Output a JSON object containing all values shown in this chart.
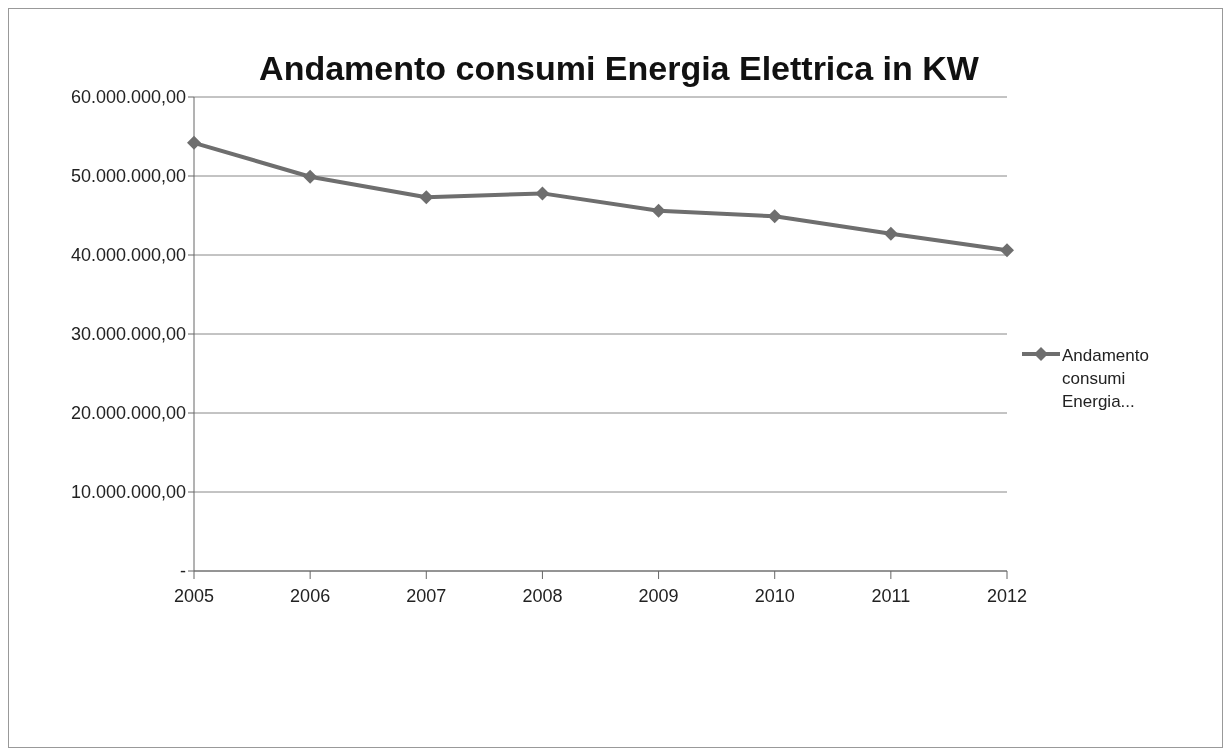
{
  "chart_data": {
    "type": "line",
    "title": "Andamento consumi Energia Elettrica in KW",
    "categories": [
      "2005",
      "2006",
      "2007",
      "2008",
      "2009",
      "2010",
      "2011",
      "2012"
    ],
    "series": [
      {
        "name": "Andamento consumi Energia...",
        "color": "#6e6e6e",
        "values": [
          54200000,
          49900000,
          47300000,
          47800000,
          45600000,
          44900000,
          42700000,
          40600000
        ]
      }
    ],
    "ylim": [
      0,
      60000000
    ],
    "yticks": [
      {
        "value": 0,
        "label": "-"
      },
      {
        "value": 10000000,
        "label": "10.000.000,00"
      },
      {
        "value": 20000000,
        "label": "20.000.000,00"
      },
      {
        "value": 30000000,
        "label": "30.000.000,00"
      },
      {
        "value": 40000000,
        "label": "40.000.000,00"
      },
      {
        "value": 50000000,
        "label": "50.000.000,00"
      },
      {
        "value": 60000000,
        "label": "60.000.000,00"
      }
    ],
    "grid": "y",
    "legend": "right",
    "marker": "diamond",
    "line_style": "solid"
  }
}
